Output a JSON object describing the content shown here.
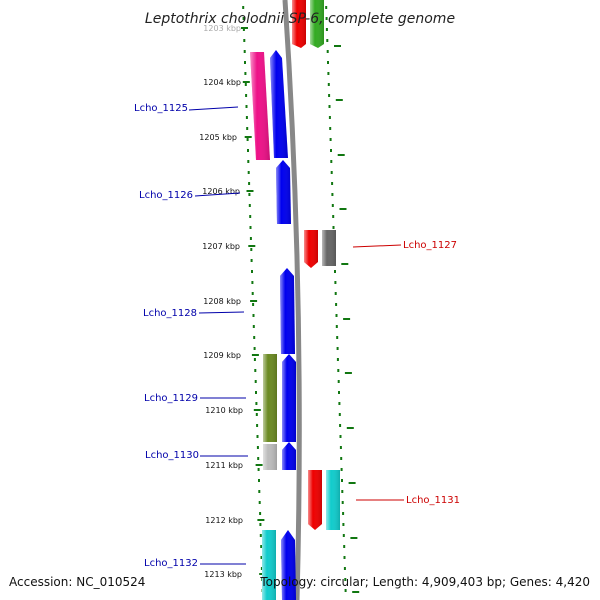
{
  "title": "Leptothrix cholodnii SP-6, complete genome",
  "accession": "Accession: NC_010524",
  "summary": "Topology: circular; Length: 4,909,403 bp; Genes: 4,420",
  "kbp_labels": [
    "1203 kbp",
    "1204 kbp",
    "1205 kbp",
    "1206 kbp",
    "1207 kbp",
    "1208 kbp",
    "1209 kbp",
    "1210 kbp",
    "1211 kbp",
    "1212 kbp",
    "1213 kbp"
  ],
  "genes_left": [
    "Lcho_1125",
    "Lcho_1126",
    "Lcho_1128",
    "Lcho_1129",
    "Lcho_1130",
    "Lcho_1132"
  ],
  "genes_right": [
    "Lcho_1127",
    "Lcho_1131"
  ],
  "colors": {
    "forward_label": "#0000aa",
    "reverse_label": "#cc0000",
    "blue": "#0000ee",
    "magenta": "#ee1188",
    "olive": "#6b8a22",
    "gray": "#bbbbbb",
    "cyan": "#11cccc",
    "red": "#ee0000",
    "darkgray": "#666666",
    "green": "#33aa22",
    "ticks": "#117711",
    "backbone": "#888888"
  }
}
